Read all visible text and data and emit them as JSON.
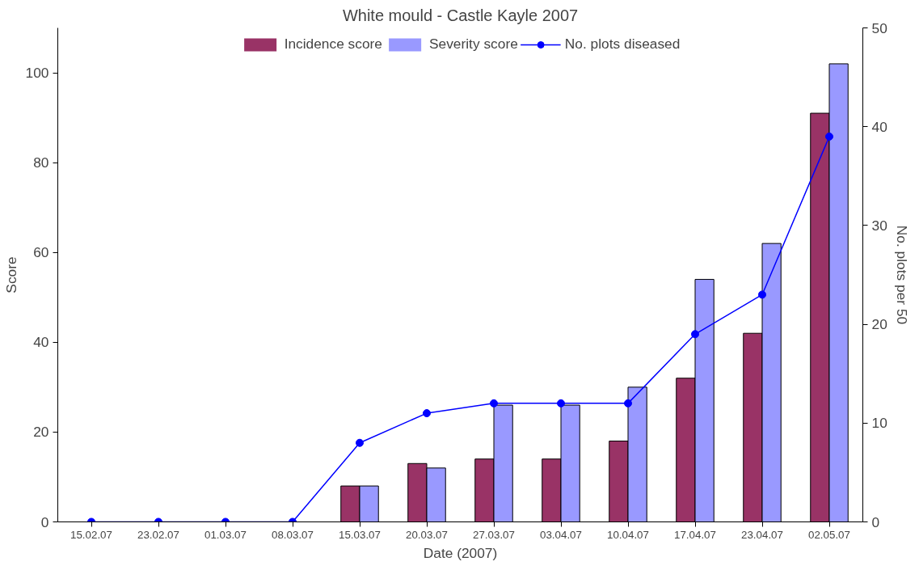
{
  "chart_data": {
    "type": "bar",
    "title": "White mould - Castle Kayle 2007",
    "xlabel": "Date (2007)",
    "ylabel": "Score",
    "y2label": "No. plots per 50",
    "categories": [
      "15.02.07",
      "23.02.07",
      "01.03.07",
      "08.03.07",
      "15.03.07",
      "20.03.07",
      "27.03.07",
      "03.04.07",
      "10.04.07",
      "17.04.07",
      "23.04.07",
      "02.05.07"
    ],
    "series": [
      {
        "name": "Incidence score",
        "color": "#993366",
        "values": [
          0,
          0,
          0,
          0,
          8,
          13,
          14,
          14,
          18,
          32,
          42,
          91
        ]
      },
      {
        "name": "Severity score",
        "color": "#9999ff",
        "values": [
          0,
          0,
          0,
          0,
          8,
          12,
          26,
          26,
          30,
          54,
          62,
          102
        ]
      },
      {
        "name": "No. plots diseased",
        "type": "line",
        "axis": "y2",
        "color": "#0000ff",
        "marker": "circle",
        "values": [
          0,
          0,
          0,
          0,
          8,
          11,
          12,
          12,
          12,
          19,
          23,
          39
        ]
      }
    ],
    "ylim": [
      0,
      110
    ],
    "yticks": [
      0,
      20,
      40,
      60,
      80,
      100
    ],
    "y2lim": [
      0,
      50
    ],
    "y2ticks": [
      0,
      10,
      20,
      30,
      40,
      50
    ],
    "legend": "top",
    "grid": false
  }
}
